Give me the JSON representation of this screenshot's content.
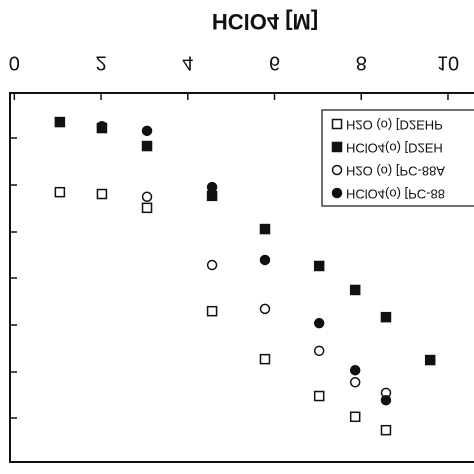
{
  "chart_data": {
    "type": "scatter",
    "title": "HClO4 [M]",
    "xlim": [
      -0.1,
      10.6
    ],
    "xticks": [
      0,
      2,
      4,
      6,
      8,
      10
    ],
    "ylim": [
      0,
      8
    ],
    "series": [
      {
        "name": "H2O (o) [D2EHP",
        "marker": "square-open",
        "color": "#111111",
        "x": [
          1.05,
          2.02,
          3.06,
          4.56,
          5.78,
          7.03,
          7.86,
          8.57
        ],
        "values": [
          5.85,
          5.81,
          5.51,
          3.27,
          2.23,
          1.43,
          0.98,
          0.69
        ]
      },
      {
        "name": "HClO4(o) [D2EH",
        "marker": "square-filled",
        "color": "#111111",
        "x": [
          1.05,
          2.02,
          3.06,
          4.56,
          5.78,
          7.03,
          7.86,
          8.57,
          9.59
        ],
        "values": [
          7.37,
          7.24,
          6.85,
          5.77,
          5.05,
          4.25,
          3.73,
          3.14,
          2.21
        ]
      },
      {
        "name": "H2O (o) [PC-88A",
        "marker": "circle-open",
        "color": "#111111",
        "x": [
          3.06,
          4.56,
          5.78,
          7.03,
          7.86,
          8.57
        ],
        "values": [
          5.75,
          4.27,
          3.32,
          2.41,
          1.73,
          1.5
        ]
      },
      {
        "name": "HClO4(o) [PC-88",
        "marker": "circle-filled",
        "color": "#111111",
        "x": [
          2.02,
          3.06,
          4.56,
          5.78,
          7.03,
          7.86,
          8.57
        ],
        "values": [
          7.28,
          7.18,
          5.96,
          4.38,
          3.01,
          1.99,
          1.34
        ]
      }
    ]
  }
}
